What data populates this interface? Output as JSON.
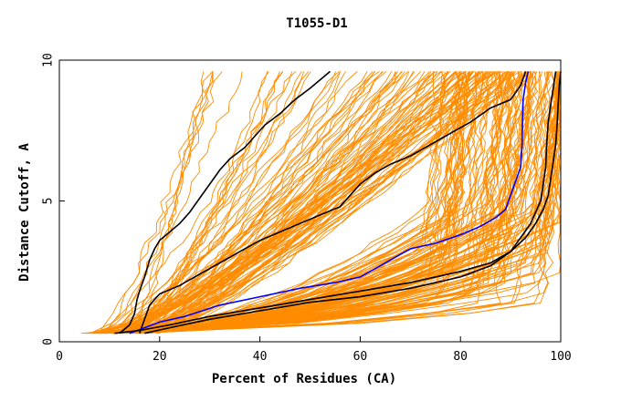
{
  "chart_data": {
    "type": "line",
    "title": "T1055-D1",
    "xlabel": "Percent of Residues (CA)",
    "ylabel": "Distance Cutoff, A",
    "xlim": [
      0,
      100
    ],
    "ylim": [
      0,
      10
    ],
    "x_ticks": [
      {
        "value": 0,
        "label": "0"
      },
      {
        "value": 20,
        "label": "20"
      },
      {
        "value": 40,
        "label": "40"
      },
      {
        "value": 60,
        "label": "60"
      },
      {
        "value": 80,
        "label": "80"
      },
      {
        "value": 100,
        "label": "100"
      }
    ],
    "y_ticks": [
      {
        "value": 0,
        "label": "0"
      },
      {
        "value": 5,
        "label": "5"
      },
      {
        "value": 10,
        "label": "10"
      }
    ],
    "grid": false,
    "background_curves_color": "#ff8c00",
    "background_curve_count": 220,
    "highlight_series": [
      {
        "color": "#000000",
        "points": [
          [
            12,
            0.3
          ],
          [
            14,
            0.6
          ],
          [
            15,
            1.0
          ],
          [
            15.5,
            1.5
          ],
          [
            16,
            1.8
          ],
          [
            17,
            2.3
          ],
          [
            18,
            2.9
          ],
          [
            19,
            3.3
          ],
          [
            20,
            3.6
          ],
          [
            22,
            3.9
          ],
          [
            24,
            4.2
          ],
          [
            26,
            4.6
          ],
          [
            28,
            5.1
          ],
          [
            30,
            5.6
          ],
          [
            32,
            6.1
          ],
          [
            34,
            6.5
          ],
          [
            37,
            6.9
          ],
          [
            39,
            7.3
          ],
          [
            41,
            7.7
          ],
          [
            44,
            8.1
          ],
          [
            47,
            8.6
          ],
          [
            50,
            9.0
          ],
          [
            54,
            9.6
          ]
        ]
      },
      {
        "color": "#000000",
        "points": [
          [
            16,
            0.3
          ],
          [
            17,
            0.8
          ],
          [
            18,
            1.3
          ],
          [
            20,
            1.7
          ],
          [
            24,
            2.0
          ],
          [
            28,
            2.4
          ],
          [
            32,
            2.8
          ],
          [
            36,
            3.2
          ],
          [
            40,
            3.6
          ],
          [
            44,
            3.9
          ],
          [
            48,
            4.2
          ],
          [
            52,
            4.5
          ],
          [
            56,
            4.8
          ],
          [
            58,
            5.2
          ],
          [
            60,
            5.6
          ],
          [
            63,
            6.0
          ],
          [
            66,
            6.3
          ],
          [
            70,
            6.6
          ],
          [
            74,
            7.0
          ],
          [
            78,
            7.4
          ],
          [
            82,
            7.8
          ],
          [
            86,
            8.3
          ],
          [
            90,
            8.6
          ],
          [
            92,
            9.1
          ],
          [
            93,
            9.6
          ]
        ]
      },
      {
        "color": "#0000ff",
        "points": [
          [
            14,
            0.3
          ],
          [
            17,
            0.5
          ],
          [
            20,
            0.7
          ],
          [
            25,
            0.9
          ],
          [
            32,
            1.3
          ],
          [
            40,
            1.6
          ],
          [
            48,
            1.9
          ],
          [
            55,
            2.1
          ],
          [
            60,
            2.3
          ],
          [
            64,
            2.7
          ],
          [
            67,
            3.0
          ],
          [
            70,
            3.3
          ],
          [
            75,
            3.5
          ],
          [
            80,
            3.8
          ],
          [
            84,
            4.1
          ],
          [
            87,
            4.4
          ],
          [
            89,
            4.7
          ],
          [
            90,
            5.2
          ],
          [
            91,
            5.7
          ],
          [
            92,
            6.2
          ],
          [
            92.3,
            7.0
          ],
          [
            92.4,
            8.0
          ],
          [
            92.5,
            8.6
          ],
          [
            93,
            9.2
          ],
          [
            93.5,
            9.6
          ]
        ]
      },
      {
        "color": "#000000",
        "points": [
          [
            11,
            0.3
          ],
          [
            16,
            0.4
          ],
          [
            22,
            0.6
          ],
          [
            30,
            0.9
          ],
          [
            40,
            1.2
          ],
          [
            50,
            1.5
          ],
          [
            60,
            1.8
          ],
          [
            70,
            2.1
          ],
          [
            80,
            2.5
          ],
          [
            86,
            2.8
          ],
          [
            90,
            3.2
          ],
          [
            92,
            3.7
          ],
          [
            94,
            4.2
          ],
          [
            95,
            4.6
          ],
          [
            96,
            5.0
          ],
          [
            96.5,
            5.6
          ],
          [
            97,
            6.2
          ],
          [
            97.2,
            7.0
          ],
          [
            97.5,
            7.8
          ],
          [
            98,
            8.4
          ],
          [
            98.5,
            9.0
          ],
          [
            99,
            9.6
          ]
        ]
      },
      {
        "color": "#000000",
        "points": [
          [
            17,
            0.3
          ],
          [
            22,
            0.5
          ],
          [
            30,
            0.8
          ],
          [
            40,
            1.1
          ],
          [
            50,
            1.4
          ],
          [
            60,
            1.6
          ],
          [
            70,
            1.9
          ],
          [
            80,
            2.3
          ],
          [
            86,
            2.7
          ],
          [
            90,
            3.2
          ],
          [
            93,
            3.7
          ],
          [
            95,
            4.2
          ],
          [
            96.5,
            4.7
          ],
          [
            97.5,
            5.2
          ],
          [
            98,
            5.8
          ],
          [
            98.5,
            6.4
          ],
          [
            99,
            7.0
          ],
          [
            99.3,
            7.8
          ],
          [
            99.5,
            8.5
          ],
          [
            99.7,
            9.1
          ],
          [
            100,
            9.6
          ]
        ]
      }
    ]
  }
}
